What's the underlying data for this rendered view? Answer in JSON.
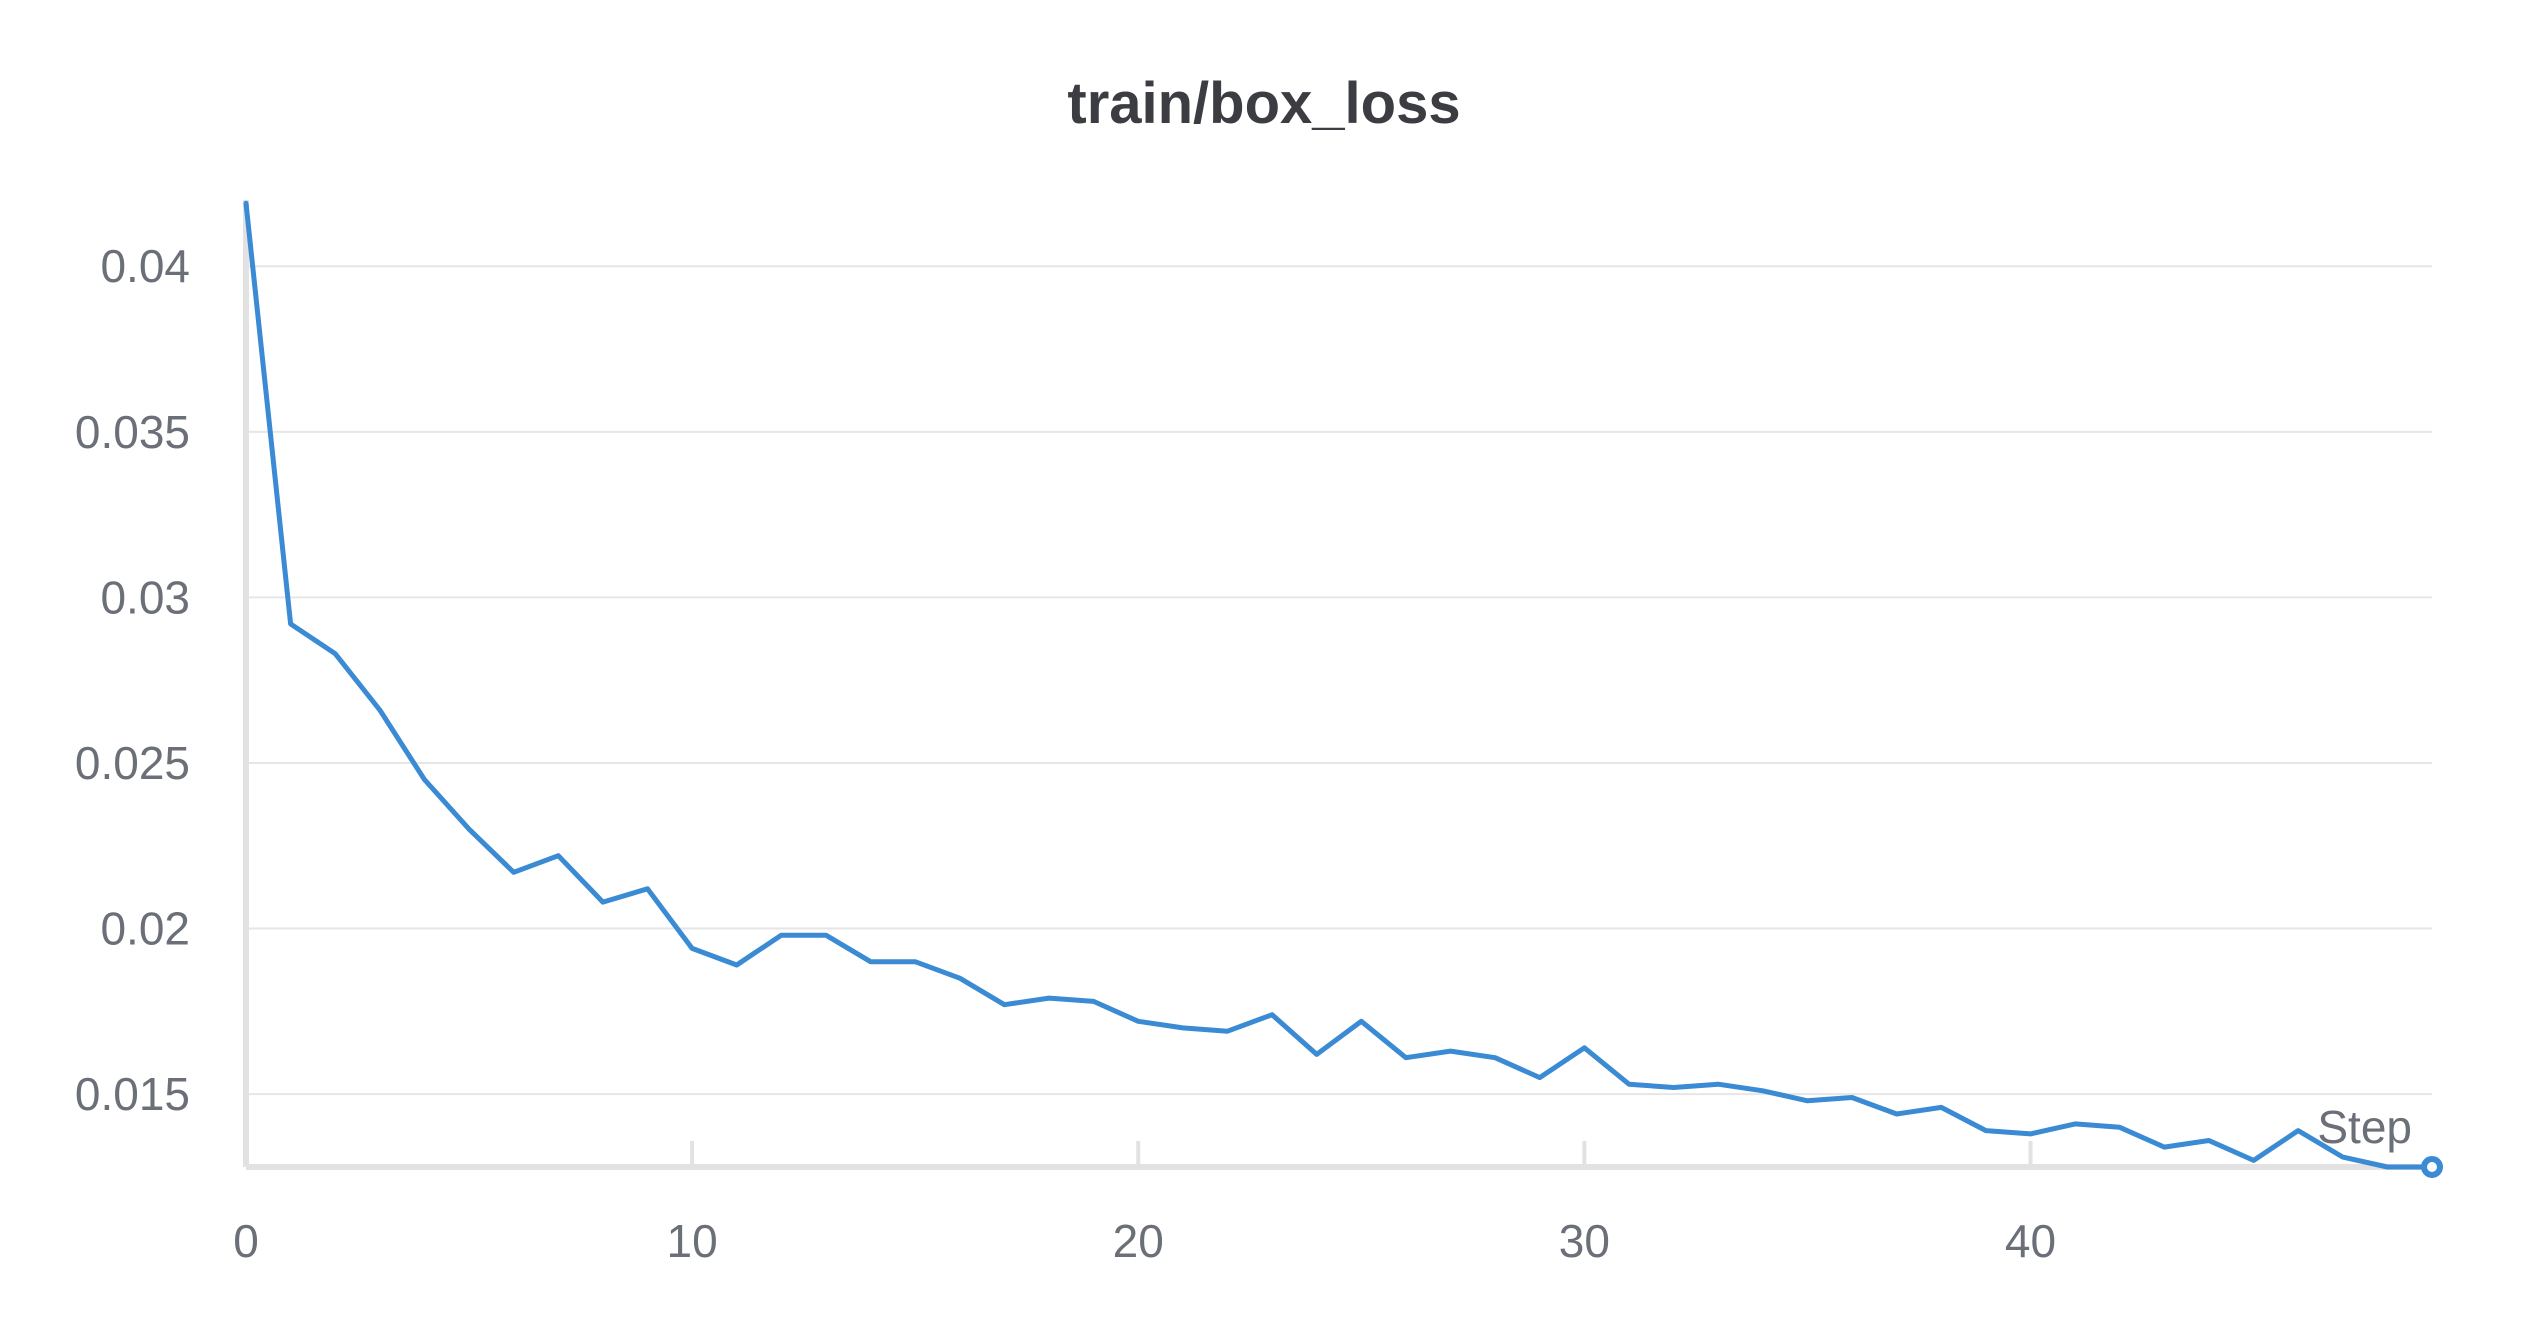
{
  "chart_data": {
    "type": "line",
    "title": "train/box_loss",
    "xlabel": "Step",
    "ylabel": "",
    "xlim": [
      0,
      49
    ],
    "ylim": [
      0.0128,
      0.042
    ],
    "xticks": [
      0,
      10,
      20,
      30,
      40
    ],
    "xtick_labels": [
      "0",
      "10",
      "20",
      "30",
      "40"
    ],
    "yticks": [
      0.015,
      0.02,
      0.025,
      0.03,
      0.035,
      0.04
    ],
    "ytick_labels": [
      "0.015",
      "0.02",
      "0.025",
      "0.03",
      "0.035",
      "0.04"
    ],
    "grid": true,
    "legend": "none",
    "colors": {
      "line": "#3a8ad4",
      "grid": "#e6e6e6",
      "axis": "#e2e2e2"
    },
    "series": [
      {
        "x": [
          0,
          1,
          2,
          3,
          4,
          5,
          6,
          7,
          8,
          9,
          10,
          11,
          12,
          13,
          14,
          15,
          16,
          17,
          18,
          19,
          20,
          21,
          22,
          23,
          24,
          25,
          26,
          27,
          28,
          29,
          30,
          31,
          32,
          33,
          34,
          35,
          36,
          37,
          38,
          39,
          40,
          41,
          42,
          43,
          44,
          45,
          46,
          47,
          48,
          49
        ],
        "values": [
          0.0419,
          0.0292,
          0.0283,
          0.0266,
          0.0245,
          0.023,
          0.0217,
          0.0222,
          0.0208,
          0.0212,
          0.0194,
          0.0189,
          0.0198,
          0.0198,
          0.019,
          0.019,
          0.0185,
          0.0177,
          0.0179,
          0.0178,
          0.0172,
          0.017,
          0.0169,
          0.0174,
          0.0162,
          0.0172,
          0.0161,
          0.0163,
          0.0161,
          0.0155,
          0.0164,
          0.0153,
          0.0152,
          0.0153,
          0.0151,
          0.0148,
          0.0149,
          0.0144,
          0.0146,
          0.0139,
          0.0138,
          0.0141,
          0.014,
          0.0134,
          0.0136,
          0.013,
          0.0139,
          0.0131,
          0.0128,
          0.0128
        ]
      }
    ]
  }
}
